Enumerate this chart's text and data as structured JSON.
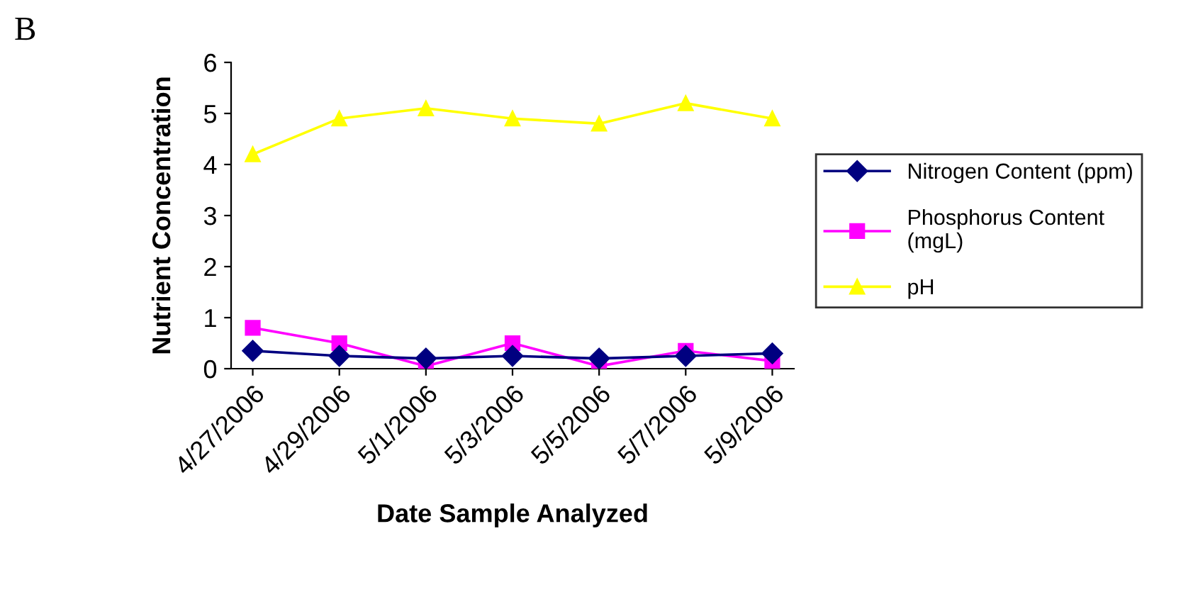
{
  "chart_data": {
    "type": "line",
    "xlabel": "Date Sample Analyzed",
    "ylabel": "Nutrient Concentration",
    "annotations": [
      "B"
    ],
    "categories": [
      "4/27/2006",
      "4/29/2006",
      "5/1/2006",
      "5/3/2006",
      "5/5/2006",
      "5/7/2006",
      "5/9/2006"
    ],
    "series": [
      {
        "name": "Nitrogen Content (ppm)",
        "color": "#000080",
        "marker": "diamond",
        "values": [
          0.35,
          0.25,
          0.2,
          0.25,
          0.2,
          0.25,
          0.3
        ]
      },
      {
        "name": "Phosphorus Content (mgL)",
        "color": "#ff00ff",
        "marker": "square",
        "values": [
          0.8,
          0.5,
          0.05,
          0.5,
          0.05,
          0.35,
          0.15
        ]
      },
      {
        "name": "pH",
        "color": "#ffff00",
        "marker": "triangle",
        "values": [
          4.2,
          4.9,
          5.1,
          4.9,
          4.8,
          5.2,
          4.9
        ]
      }
    ],
    "ylim": [
      0,
      6
    ],
    "yticks": [
      0,
      1,
      2,
      3,
      4,
      5,
      6
    ],
    "grid": false,
    "legend": "right"
  }
}
